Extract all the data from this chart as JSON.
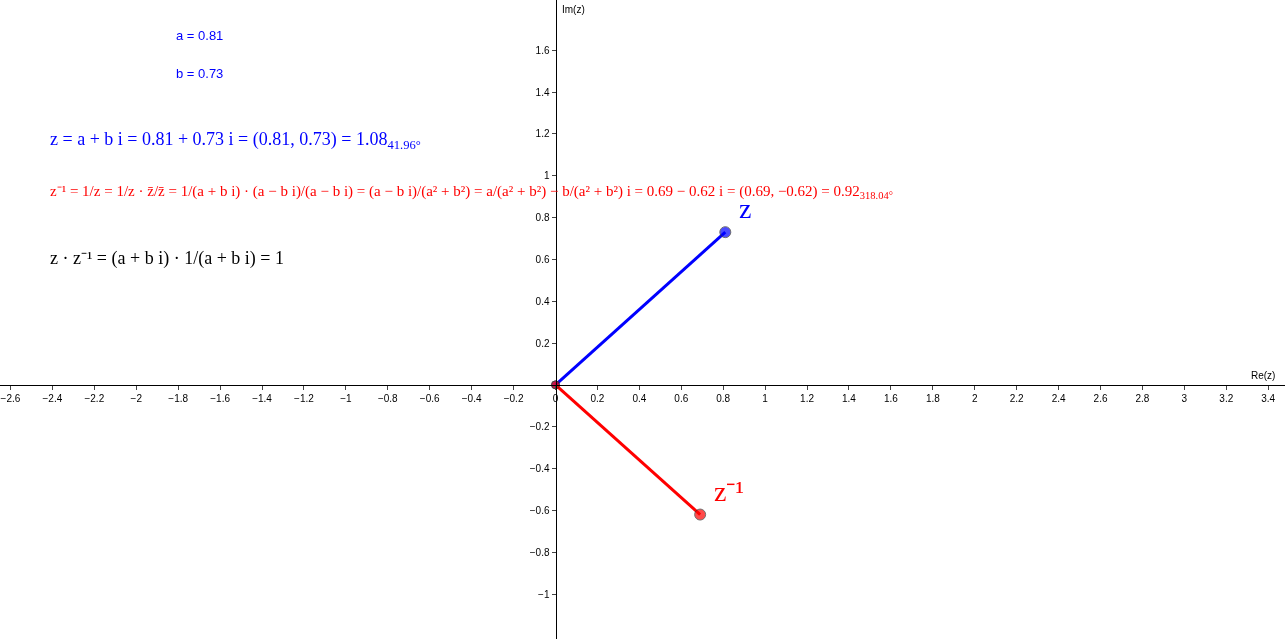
{
  "chart_data": {
    "type": "line",
    "xlabel": "Re(z)",
    "ylabel": "Im(z)",
    "xlim": [
      -2.65,
      3.48
    ],
    "ylim": [
      -1.215,
      1.84
    ],
    "xticks": [
      -2.6,
      -2.4,
      -2.2,
      -2,
      -1.8,
      -1.6,
      -1.4,
      -1.2,
      -1,
      -0.8,
      -0.6,
      -0.4,
      -0.2,
      0,
      0.2,
      0.4,
      0.6,
      0.8,
      1,
      1.2,
      1.4,
      1.6,
      1.8,
      2,
      2.2,
      2.4,
      2.6,
      2.8,
      3,
      3.2,
      3.4
    ],
    "yticks": [
      -1,
      -0.8,
      -0.6,
      -0.4,
      -0.2,
      0.2,
      0.4,
      0.6,
      0.8,
      1,
      1.2,
      1.4,
      1.6
    ],
    "marker": "circle",
    "line_style": "solid",
    "series": [
      {
        "name": "z",
        "color": "#0000ff",
        "x": [
          0,
          0.81
        ],
        "values": [
          0,
          0.73
        ]
      },
      {
        "name": "z⁻¹",
        "color": "#ff0000",
        "x": [
          0,
          0.69
        ],
        "values": [
          0,
          -0.62
        ]
      }
    ],
    "annotations": [
      "a = 0.81",
      "b = 0.73",
      "z = a + b i = 0.81 + 0.73 i = (0.81, 0.73) = 1.08$_{41.96°}$",
      "z⁻¹ = 1/z = 1/z · z̄/z̄ = 1/(a + b i) · (a − b i)/(a − b i) = (a − b i)/(a² + b²) = a/(a² + b²) − b/(a² + b²) i = 0.69 − 0.62 i = (0.69, −0.62) = 0.92$_{318.04°}$",
      "z · z⁻¹ = (a + b i) · 1/(a + b i) = 1"
    ]
  }
}
